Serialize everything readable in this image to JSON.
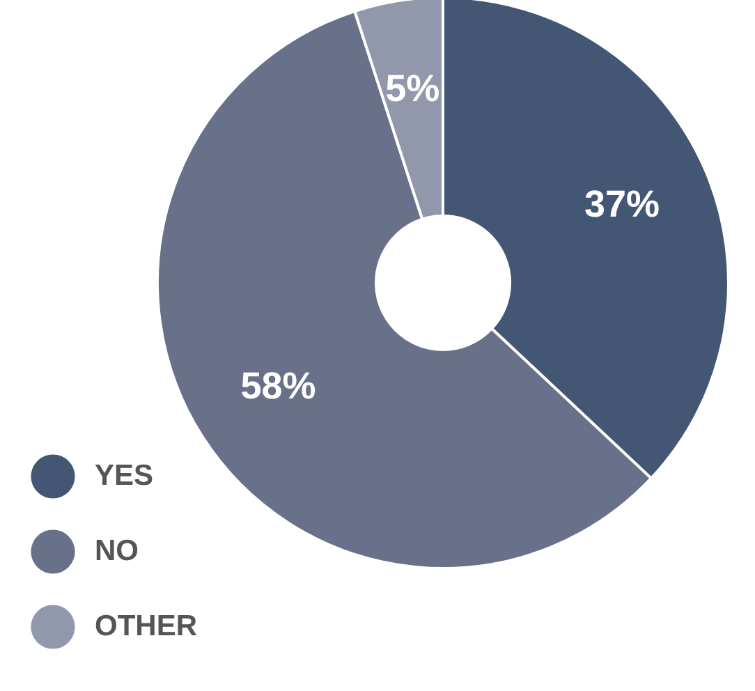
{
  "chart_data": {
    "type": "donut",
    "categories": [
      "YES",
      "NO",
      "OTHER"
    ],
    "values": [
      37,
      58,
      5
    ],
    "colors": [
      "#435775",
      "#687189",
      "#9298ab"
    ],
    "value_labels": [
      "37%",
      "58%",
      "5%"
    ],
    "legend": "bottom left"
  }
}
